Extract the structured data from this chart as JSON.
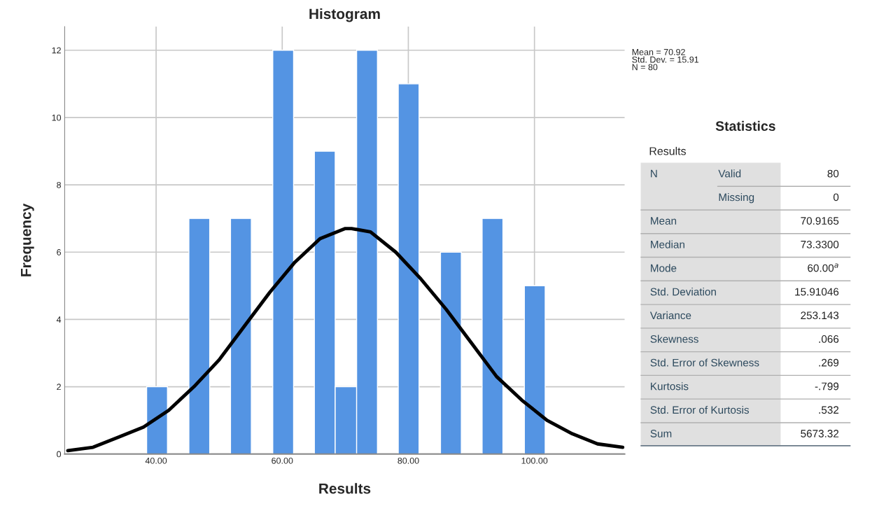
{
  "chart_data": [
    {
      "type": "histogram",
      "title": "Histogram",
      "xlabel": "Results",
      "ylabel": "Frequency",
      "bins": [
        38.5,
        41.8,
        45.2,
        48.5,
        51.8,
        55.1,
        58.5,
        61.8,
        65.1,
        68.4,
        71.8,
        75.1,
        78.4,
        81.7,
        85.1,
        88.4,
        91.7,
        95.0,
        98.4,
        101.7
      ],
      "values": [
        2,
        0,
        7,
        0,
        7,
        0,
        12,
        0,
        9,
        2,
        12,
        0,
        11,
        0,
        6,
        0,
        7,
        0,
        5
      ],
      "color": "#5494e3",
      "series": [
        {
          "type": "line",
          "color": "#000000",
          "x": [
            26,
            30,
            34,
            38,
            42,
            46,
            50,
            54,
            58,
            62,
            66,
            70,
            71,
            74,
            78,
            82,
            86,
            90,
            94,
            98,
            102,
            106,
            110,
            114
          ],
          "values": [
            0.1,
            0.2,
            0.5,
            0.8,
            1.3,
            2.0,
            2.8,
            3.8,
            4.8,
            5.7,
            6.4,
            6.7,
            6.7,
            6.6,
            6.0,
            5.2,
            4.3,
            3.3,
            2.3,
            1.6,
            1.0,
            0.6,
            0.3,
            0.2
          ]
        }
      ],
      "xlim": [
        25.5,
        114.3
      ],
      "ylim": [
        0,
        12.7
      ],
      "xticks": [
        {
          "value": 40,
          "label": "40.00"
        },
        {
          "value": 60,
          "label": "60.00"
        },
        {
          "value": 80,
          "label": "80.00"
        },
        {
          "value": 100,
          "label": "100.00"
        }
      ],
      "yticks": [
        0,
        2,
        4,
        6,
        8,
        10,
        12
      ],
      "grid": true,
      "annotations": [
        "Mean = 70.92\nStd. Dev. = 15.91\nN = 80"
      ]
    },
    {
      "type": "other",
      "title": "Statistics",
      "subtitle": "Results",
      "annotations": [
        "N",
        "Valid",
        "80",
        "Missing",
        "0",
        "Mean",
        "70.9165",
        "Median",
        "73.3300",
        "Mode",
        "60.00$^{a}$",
        "Std. Deviation",
        "15.91046",
        "Variance",
        "253.143",
        "Skewness",
        ".066",
        "Std. Error of Skewness",
        ".269",
        "Kurtosis",
        "-.799",
        "Std. Error of Kurtosis",
        ".532",
        "Sum",
        "5673.32"
      ]
    }
  ]
}
